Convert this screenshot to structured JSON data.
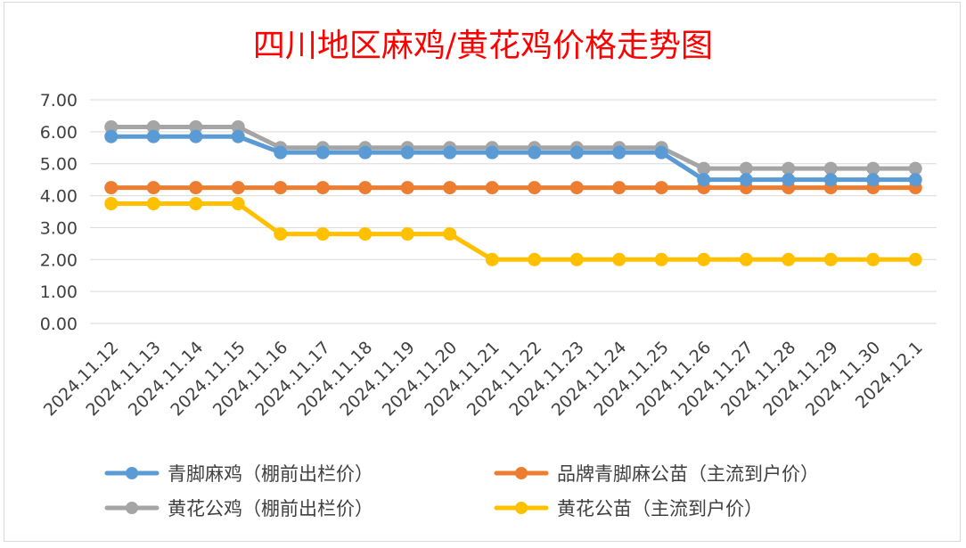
{
  "chart_data": {
    "type": "line",
    "title": "四川地区麻鸡/黄花鸡价格走势图",
    "xlabel": "",
    "ylabel": "",
    "ylim": [
      0,
      7
    ],
    "ytick_step": 1,
    "ytick_decimals": 2,
    "grid": true,
    "legend_position": "bottom",
    "categories": [
      "2024.11.12",
      "2024.11.13",
      "2024.11.14",
      "2024.11.15",
      "2024.11.16",
      "2024.11.17",
      "2024.11.18",
      "2024.11.19",
      "2024.11.20",
      "2024.11.21",
      "2024.11.22",
      "2024.11.23",
      "2024.11.24",
      "2024.11.25",
      "2024.11.26",
      "2024.11.27",
      "2024.11.28",
      "2024.11.29",
      "2024.11.30",
      "2024.12.1"
    ],
    "series": [
      {
        "name": "青脚麻鸡（棚前出栏价）",
        "color": "#5b9bd5",
        "values": [
          5.85,
          5.85,
          5.85,
          5.85,
          5.35,
          5.35,
          5.35,
          5.35,
          5.35,
          5.35,
          5.35,
          5.35,
          5.35,
          5.35,
          4.5,
          4.5,
          4.5,
          4.5,
          4.5,
          4.5
        ]
      },
      {
        "name": "品牌青脚麻公苗（主流到户价）",
        "color": "#ed7d31",
        "values": [
          4.25,
          4.25,
          4.25,
          4.25,
          4.25,
          4.25,
          4.25,
          4.25,
          4.25,
          4.25,
          4.25,
          4.25,
          4.25,
          4.25,
          4.25,
          4.25,
          4.25,
          4.25,
          4.25,
          4.25
        ]
      },
      {
        "name": "黄花公鸡（棚前出栏价）",
        "color": "#a5a5a5",
        "values": [
          6.15,
          6.15,
          6.15,
          6.15,
          5.5,
          5.5,
          5.5,
          5.5,
          5.5,
          5.5,
          5.5,
          5.5,
          5.5,
          5.5,
          4.85,
          4.85,
          4.85,
          4.85,
          4.85,
          4.85
        ]
      },
      {
        "name": "黄花公苗（主流到户价）",
        "color": "#ffc000",
        "values": [
          3.75,
          3.75,
          3.75,
          3.75,
          2.8,
          2.8,
          2.8,
          2.8,
          2.8,
          2.0,
          2.0,
          2.0,
          2.0,
          2.0,
          2.0,
          2.0,
          2.0,
          2.0,
          2.0,
          2.0
        ]
      }
    ],
    "draw_order": [
      1,
      3,
      2,
      0
    ],
    "legend_order": [
      0,
      1,
      2,
      3
    ]
  }
}
